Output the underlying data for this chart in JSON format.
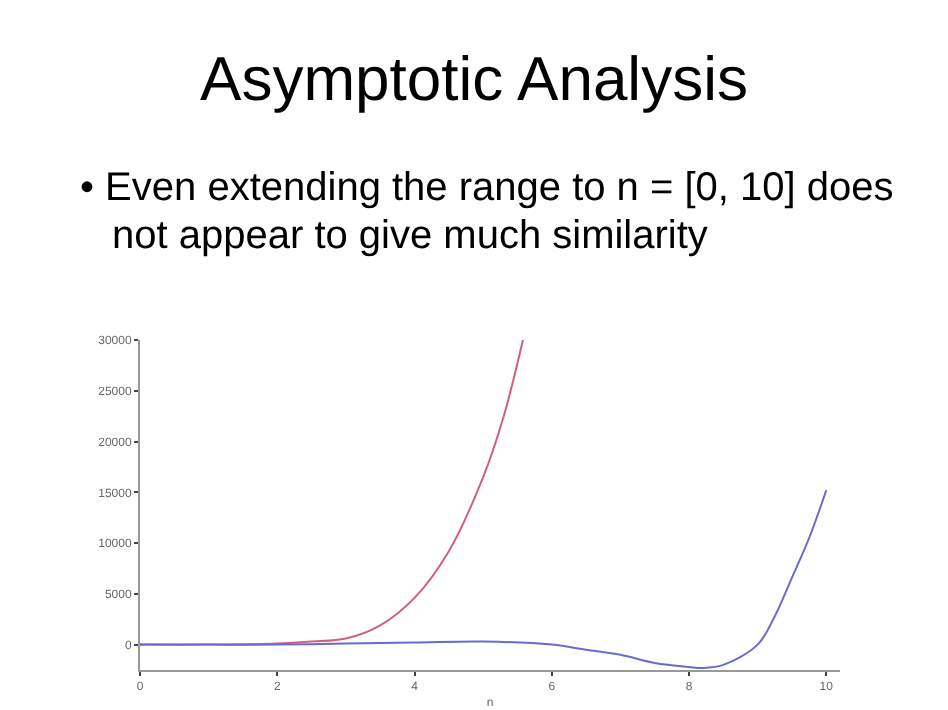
{
  "chart_data": {
    "type": "line",
    "title": "Asymptotic Analysis",
    "subtitle": "• Even extending the range to n = [0, 10] does not appear to give much similarity",
    "xlabel": "n",
    "series": [
      {
        "color": "#d0607a",
        "x": [
          0,
          1,
          2,
          2.5,
          3,
          3.5,
          4,
          4.5,
          5,
          5.3,
          5.58
        ],
        "values": [
          0,
          0,
          100,
          300,
          600,
          1900,
          4600,
          9200,
          16500,
          22500,
          30000
        ]
      },
      {
        "color": "#6a6ad0",
        "x": [
          0,
          1,
          2,
          3,
          4,
          5,
          6,
          6.5,
          7,
          7.5,
          8,
          8.2,
          8.5,
          9,
          9.25,
          9.5,
          9.75,
          10
        ],
        "values": [
          0,
          0,
          0,
          100,
          200,
          300,
          0,
          -500,
          -1000,
          -1800,
          -2200,
          -2300,
          -2000,
          0,
          2800,
          6600,
          10500,
          15200
        ]
      }
    ],
    "xlim": [
      0,
      10.2
    ],
    "ylim": [
      -2500,
      30000
    ],
    "xticks": [
      0,
      2,
      4,
      6,
      8,
      10
    ],
    "yticks": [
      0,
      5000,
      10000,
      15000,
      20000,
      25000,
      30000
    ],
    "grid": false,
    "line_style": "solid"
  }
}
